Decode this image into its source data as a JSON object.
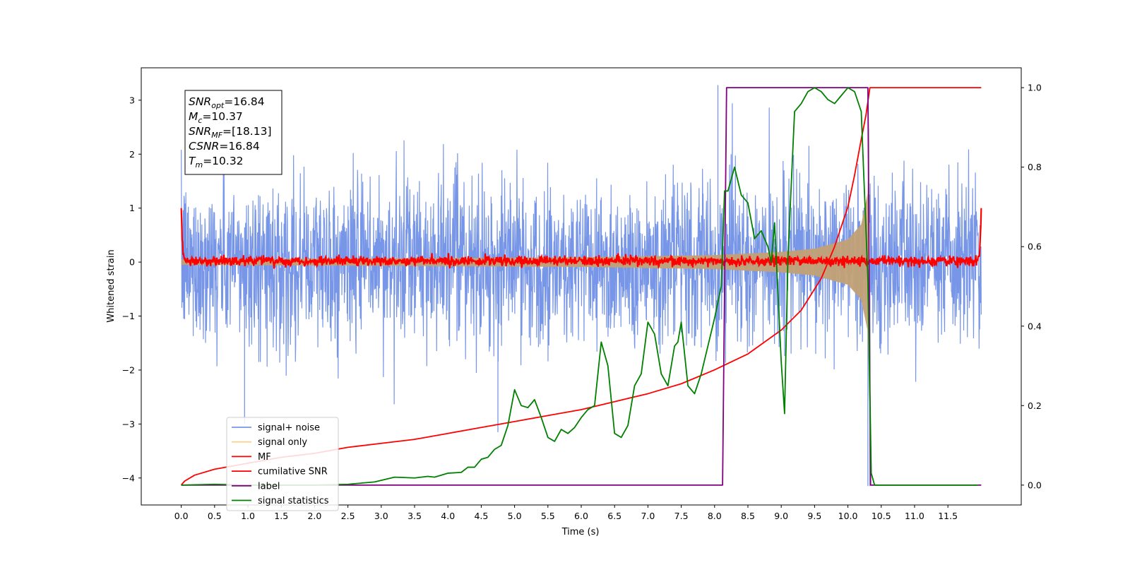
{
  "chart_data": {
    "type": "line",
    "xlabel": "Time (s)",
    "ylabel": "Whitened strain",
    "xlim": [
      -0.6,
      12.6
    ],
    "ylim": [
      -4.5,
      3.6
    ],
    "y2lim": [
      -0.05,
      1.05
    ],
    "x_ticks": [
      0.0,
      0.5,
      1.0,
      1.5,
      2.0,
      2.5,
      3.0,
      3.5,
      4.0,
      4.5,
      5.0,
      5.5,
      6.0,
      6.5,
      7.0,
      7.5,
      8.0,
      8.5,
      9.0,
      9.5,
      10.0,
      10.5,
      11.0,
      11.5
    ],
    "x_tick_labels": [
      "0.0",
      "0.5",
      "1.0",
      "1.5",
      "2.0",
      "2.5",
      "3.0",
      "3.5",
      "4.0",
      "4.5",
      "5.0",
      "5.5",
      "6.0",
      "6.5",
      "7.0",
      "7.5",
      "8.0",
      "8.5",
      "9.0",
      "9.5",
      "10.0",
      "10.5",
      "11.0",
      "11.5"
    ],
    "y_ticks": [
      3,
      2,
      1,
      0,
      -1,
      -2,
      -3,
      -4
    ],
    "y_tick_labels": [
      "3",
      "2",
      "1",
      "0",
      "−1",
      "−2",
      "−3",
      "−4"
    ],
    "y2_ticks": [
      1.0,
      0.8,
      0.6,
      0.4,
      0.2,
      0.0
    ],
    "y2_tick_labels": [
      "1.0",
      "0.8",
      "0.6",
      "0.4",
      "0.2",
      "0.0"
    ],
    "grid": false,
    "legend_position": "lower-left",
    "annotation": {
      "position": "top-left",
      "lines": [
        {
          "symbol": "SNR",
          "sub": "opt",
          "value": "=16.84"
        },
        {
          "symbol": "M",
          "sub": "c",
          "value": "=10.37"
        },
        {
          "symbol": "SNR",
          "sub": "MF",
          "value": "=[18.13]"
        },
        {
          "symbol": "CSNR",
          "sub": "",
          "value": "=16.84"
        },
        {
          "symbol": "T",
          "sub": "m",
          "value": "=10.32"
        }
      ]
    },
    "series": [
      {
        "name": "signal+ noise",
        "axis": "left",
        "color": "#7896e8",
        "kind": "noise",
        "x_range": [
          0.0,
          12.0
        ],
        "amplitude_std": 0.75,
        "min": -4.15,
        "max": 3.28
      },
      {
        "name": "signal only",
        "axis": "left",
        "color": "#f5c87a",
        "kind": "chirp",
        "merger_time": 10.32,
        "envelope": {
          "x": [
            0.0,
            6.0,
            8.0,
            9.0,
            9.5,
            10.0,
            10.2,
            10.3,
            10.32
          ],
          "y": [
            0.05,
            0.09,
            0.13,
            0.19,
            0.25,
            0.42,
            0.7,
            1.3,
            2.7
          ]
        }
      },
      {
        "name": "MF",
        "axis": "left",
        "color": "#ff0000",
        "kind": "matched-filter",
        "x_range": [
          0.0,
          12.0
        ],
        "baseline": 0.02,
        "noise_std": 0.045,
        "edge_value": 1.0
      },
      {
        "name": "cumilative SNR",
        "axis": "right",
        "color": "#ff0000",
        "x": [
          0.0,
          0.05,
          0.2,
          0.5,
          1.0,
          1.5,
          2.0,
          2.5,
          3.0,
          3.5,
          4.0,
          4.5,
          5.0,
          5.5,
          6.0,
          6.5,
          7.0,
          7.5,
          8.0,
          8.5,
          9.0,
          9.3,
          9.6,
          9.8,
          10.0,
          10.1,
          10.2,
          10.27,
          10.33,
          10.34,
          10.5,
          11.0,
          11.5,
          12.0
        ],
        "y": [
          0.0,
          0.01,
          0.025,
          0.04,
          0.055,
          0.07,
          0.08,
          0.095,
          0.105,
          0.115,
          0.13,
          0.145,
          0.16,
          0.175,
          0.19,
          0.21,
          0.23,
          0.255,
          0.29,
          0.33,
          0.39,
          0.44,
          0.52,
          0.6,
          0.7,
          0.78,
          0.87,
          0.93,
          1.0,
          1.0,
          1.0,
          1.0,
          1.0,
          1.0
        ]
      },
      {
        "name": "label",
        "axis": "right",
        "color": "#800080",
        "x": [
          0.0,
          8.12,
          8.18,
          10.3,
          10.34,
          10.4,
          12.0
        ],
        "y": [
          0.0,
          0.0,
          1.0,
          1.0,
          0.0,
          0.0,
          0.0
        ]
      },
      {
        "name": "signal statistics",
        "axis": "right",
        "color": "#008000",
        "x": [
          0.0,
          0.5,
          1.0,
          1.5,
          2.0,
          2.5,
          2.9,
          3.0,
          3.2,
          3.5,
          3.7,
          3.8,
          4.0,
          4.2,
          4.3,
          4.4,
          4.5,
          4.6,
          4.7,
          4.8,
          4.9,
          5.0,
          5.1,
          5.2,
          5.3,
          5.4,
          5.5,
          5.6,
          5.7,
          5.8,
          5.9,
          6.0,
          6.1,
          6.2,
          6.3,
          6.35,
          6.4,
          6.5,
          6.6,
          6.7,
          6.8,
          6.9,
          7.0,
          7.1,
          7.2,
          7.3,
          7.4,
          7.45,
          7.5,
          7.6,
          7.7,
          7.8,
          7.9,
          8.0,
          8.1,
          8.15,
          8.2,
          8.3,
          8.4,
          8.5,
          8.6,
          8.7,
          8.8,
          8.85,
          8.9,
          9.0,
          9.05,
          9.1,
          9.2,
          9.3,
          9.4,
          9.5,
          9.6,
          9.7,
          9.8,
          9.9,
          10.0,
          10.1,
          10.2,
          10.3,
          10.35,
          10.4,
          10.5,
          11.0,
          11.5,
          11.95
        ],
        "y": [
          0.0,
          0.002,
          0.0,
          0.0,
          0.0,
          0.002,
          0.008,
          0.012,
          0.02,
          0.018,
          0.022,
          0.02,
          0.03,
          0.032,
          0.045,
          0.045,
          0.065,
          0.07,
          0.09,
          0.1,
          0.15,
          0.24,
          0.2,
          0.195,
          0.215,
          0.17,
          0.12,
          0.11,
          0.14,
          0.13,
          0.145,
          0.17,
          0.19,
          0.2,
          0.36,
          0.33,
          0.3,
          0.13,
          0.12,
          0.15,
          0.25,
          0.28,
          0.41,
          0.38,
          0.28,
          0.25,
          0.35,
          0.36,
          0.41,
          0.25,
          0.23,
          0.28,
          0.35,
          0.42,
          0.5,
          0.74,
          0.74,
          0.8,
          0.73,
          0.71,
          0.62,
          0.64,
          0.6,
          0.56,
          0.66,
          0.31,
          0.18,
          0.57,
          0.94,
          0.96,
          0.99,
          1.0,
          0.99,
          0.97,
          0.96,
          0.98,
          1.0,
          0.99,
          0.94,
          0.52,
          0.03,
          0.0,
          0.0,
          0.0,
          0.0,
          0.0
        ]
      }
    ]
  }
}
